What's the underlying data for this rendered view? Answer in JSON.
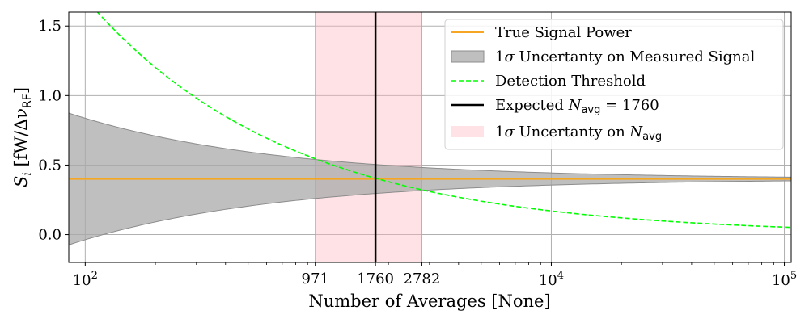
{
  "chart_data": {
    "type": "line",
    "xlabel": "Number of Averages [None]",
    "ylabel_main": "S",
    "ylabel_sub": "i",
    "ylabel_units": " [fW/Δν",
    "ylabel_units_sub": "RF",
    "ylabel_close": "]",
    "xscale": "log",
    "xlim": [
      85,
      107000
    ],
    "ylim": [
      -0.2,
      1.6
    ],
    "grid": true,
    "legend_position": "top-right",
    "x_ticks": [
      {
        "base": "10",
        "exp": "2",
        "value": 100
      },
      {
        "base": "10",
        "exp": "4",
        "value": 10000
      },
      {
        "base": "10",
        "exp": "5",
        "value": 100000
      }
    ],
    "x_extra_ticks": [
      {
        "label": "971",
        "value": 971
      },
      {
        "label": "1760",
        "value": 1760
      },
      {
        "label": "2782",
        "value": 2782
      }
    ],
    "y_ticks": [
      {
        "label": "0.0",
        "value": 0.0
      },
      {
        "label": "0.5",
        "value": 0.5
      },
      {
        "label": "1.0",
        "value": 1.0
      },
      {
        "label": "1.5",
        "value": 1.5
      }
    ],
    "series": [
      {
        "name": "True Signal Power",
        "kind": "hline",
        "y": 0.4,
        "color": "#f5a623"
      },
      {
        "name": "1σ Uncertainty on Measured Signal",
        "kind": "band",
        "center": 0.4,
        "half_width_at_x": 0.437,
        "x_ref": 100,
        "power": -0.5,
        "color": "#a9a9a9"
      },
      {
        "name": "Detection Threshold",
        "kind": "curve",
        "amplitude": 1.7,
        "x_ref": 100,
        "power": -0.5,
        "color": "#00ff00"
      },
      {
        "name": "Expected N_avg = 1760",
        "kind": "vline",
        "x": 1760,
        "color": "#000000"
      },
      {
        "name": "1σ Uncertainty on N_avg",
        "kind": "vspan",
        "x0": 971,
        "x1": 2782,
        "color": "#ffb6c1"
      }
    ],
    "legend": [
      {
        "text_pre": "True Signal Power",
        "text_math": "",
        "text_sub": "",
        "text_post": ""
      },
      {
        "text_pre": "1",
        "text_math": "σ",
        "text_sub": "",
        "text_post": " Uncertanty on Measured Signal"
      },
      {
        "text_pre": "Detection Threshold",
        "text_math": "",
        "text_sub": "",
        "text_post": ""
      },
      {
        "text_pre": "Expected ",
        "text_math": "N",
        "text_sub": "avg",
        "text_post": " = 1760"
      },
      {
        "text_pre": "1",
        "text_math": "σ",
        "text_sub": "",
        "text_post": " Uncertanty on ",
        "text_math2": "N",
        "text_sub2": "avg"
      }
    ]
  }
}
